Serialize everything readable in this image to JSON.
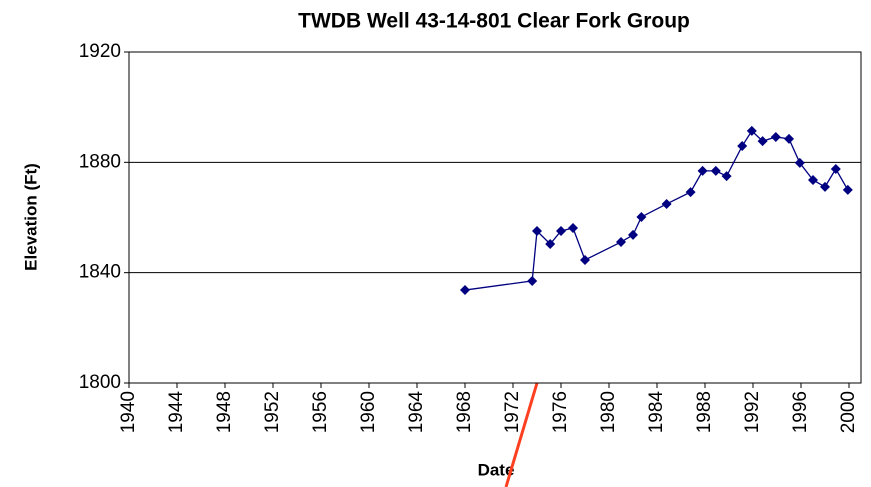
{
  "chart_data": {
    "type": "line",
    "title": "TWDB Well 43-14-801 Clear Fork Group",
    "x_label": "Date",
    "y_label": "Elevation (Ft)",
    "x": [
      1968,
      1973.6,
      1974,
      1975.1,
      1976,
      1977,
      1978,
      1981,
      1982,
      1982.7,
      1984.8,
      1986.8,
      1987.8,
      1988.9,
      1989.8,
      1991.1,
      1991.9,
      1992.8,
      1993.9,
      1995,
      1995.9,
      1997,
      1998,
      1998.9,
      1999.9
    ],
    "series": [
      {
        "name": "Elevation",
        "color": "#000080",
        "values": [
          1833.7,
          1837,
          1855.1,
          1850.4,
          1855.1,
          1856.2,
          1844.6,
          1851.1,
          1853.7,
          1860.2,
          1864.9,
          1869.2,
          1876.9,
          1876.9,
          1875,
          1885.9,
          1891.4,
          1887.7,
          1889.2,
          1888.5,
          1879.8,
          1873.6,
          1871.1,
          1877.6,
          1870
        ]
      }
    ],
    "xlim": [
      1940,
      2001
    ],
    "xticks": [
      1940,
      1944,
      1948,
      1952,
      1956,
      1960,
      1964,
      1968,
      1972,
      1976,
      1980,
      1984,
      1988,
      1992,
      1996,
      2000
    ],
    "ylim": [
      1800,
      1920
    ],
    "yticks": [
      1800,
      1840,
      1880,
      1920
    ],
    "grid": true
  }
}
